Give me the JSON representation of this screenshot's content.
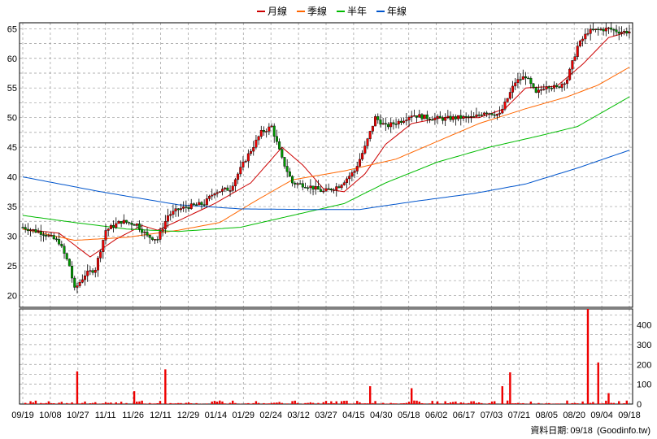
{
  "footer": {
    "label": "資料日期:",
    "date": "09/18",
    "source": "(Goodinfo.tw)"
  },
  "chart_data": {
    "type": "candlestick",
    "legend": [
      {
        "name": "月線",
        "color": "#cc0000"
      },
      {
        "name": "季線",
        "color": "#ff6600"
      },
      {
        "name": "半年",
        "color": "#00bb00"
      },
      {
        "name": "年線",
        "color": "#0055cc"
      }
    ],
    "x_tick_labels": [
      "09/19",
      "10/08",
      "10/27",
      "11/11",
      "11/26",
      "12/11",
      "12/29",
      "01/14",
      "01/29",
      "02/24",
      "03/12",
      "03/27",
      "04/15",
      "04/30",
      "05/18",
      "06/02",
      "06/17",
      "07/03",
      "07/21",
      "08/05",
      "08/20",
      "09/04",
      "09/18"
    ],
    "price_axis": {
      "ylim": [
        18,
        66
      ],
      "ticks": [
        20,
        25,
        30,
        35,
        40,
        45,
        50,
        55,
        60,
        65
      ]
    },
    "volume_axis": {
      "ylim": [
        0,
        480
      ],
      "ticks": [
        0,
        100,
        200,
        300,
        400
      ]
    },
    "close_series": [
      {
        "i": 0,
        "v": 31.5
      },
      {
        "i": 8,
        "v": 30.5
      },
      {
        "i": 14,
        "v": 29
      },
      {
        "i": 18,
        "v": 25
      },
      {
        "i": 20,
        "v": 21
      },
      {
        "i": 24,
        "v": 23.5
      },
      {
        "i": 28,
        "v": 24.5
      },
      {
        "i": 32,
        "v": 31
      },
      {
        "i": 38,
        "v": 32.5
      },
      {
        "i": 44,
        "v": 32
      },
      {
        "i": 48,
        "v": 30
      },
      {
        "i": 52,
        "v": 29.5
      },
      {
        "i": 56,
        "v": 33.5
      },
      {
        "i": 60,
        "v": 34.5
      },
      {
        "i": 64,
        "v": 35
      },
      {
        "i": 70,
        "v": 35.5
      },
      {
        "i": 74,
        "v": 37.5
      },
      {
        "i": 80,
        "v": 38
      },
      {
        "i": 86,
        "v": 43
      },
      {
        "i": 92,
        "v": 47.5
      },
      {
        "i": 96,
        "v": 48.5
      },
      {
        "i": 100,
        "v": 43
      },
      {
        "i": 104,
        "v": 39
      },
      {
        "i": 110,
        "v": 38.5
      },
      {
        "i": 116,
        "v": 37.5
      },
      {
        "i": 122,
        "v": 38.5
      },
      {
        "i": 128,
        "v": 41
      },
      {
        "i": 132,
        "v": 45
      },
      {
        "i": 136,
        "v": 50
      },
      {
        "i": 140,
        "v": 48.5
      },
      {
        "i": 146,
        "v": 49.5
      },
      {
        "i": 150,
        "v": 50.5
      },
      {
        "i": 156,
        "v": 50
      },
      {
        "i": 162,
        "v": 49.8
      },
      {
        "i": 168,
        "v": 50
      },
      {
        "i": 174,
        "v": 50
      },
      {
        "i": 178,
        "v": 51
      },
      {
        "i": 184,
        "v": 50.5
      },
      {
        "i": 190,
        "v": 56
      },
      {
        "i": 194,
        "v": 57
      },
      {
        "i": 198,
        "v": 54
      },
      {
        "i": 202,
        "v": 55.5
      },
      {
        "i": 206,
        "v": 55
      },
      {
        "i": 210,
        "v": 56.5
      },
      {
        "i": 214,
        "v": 62
      },
      {
        "i": 218,
        "v": 64.5
      },
      {
        "i": 222,
        "v": 64.8
      },
      {
        "i": 226,
        "v": 65
      },
      {
        "i": 230,
        "v": 64.5
      },
      {
        "i": 234,
        "v": 64.5
      }
    ],
    "ma_series": {
      "月線": [
        {
          "i": 0,
          "v": 31.2
        },
        {
          "i": 14,
          "v": 30.5
        },
        {
          "i": 26,
          "v": 26.5
        },
        {
          "i": 36,
          "v": 29.5
        },
        {
          "i": 46,
          "v": 31.8
        },
        {
          "i": 52,
          "v": 31
        },
        {
          "i": 62,
          "v": 33
        },
        {
          "i": 74,
          "v": 35.5
        },
        {
          "i": 88,
          "v": 39
        },
        {
          "i": 100,
          "v": 45
        },
        {
          "i": 108,
          "v": 42
        },
        {
          "i": 116,
          "v": 38
        },
        {
          "i": 124,
          "v": 37.5
        },
        {
          "i": 132,
          "v": 40.5
        },
        {
          "i": 140,
          "v": 45.5
        },
        {
          "i": 150,
          "v": 49
        },
        {
          "i": 162,
          "v": 50
        },
        {
          "i": 176,
          "v": 50
        },
        {
          "i": 186,
          "v": 51.5
        },
        {
          "i": 194,
          "v": 55
        },
        {
          "i": 206,
          "v": 55.3
        },
        {
          "i": 216,
          "v": 59
        },
        {
          "i": 226,
          "v": 63.5
        },
        {
          "i": 234,
          "v": 64.5
        }
      ],
      "季線": [
        {
          "i": 0,
          "v": 31.2
        },
        {
          "i": 20,
          "v": 29.3
        },
        {
          "i": 40,
          "v": 29.8
        },
        {
          "i": 60,
          "v": 31
        },
        {
          "i": 76,
          "v": 32.3
        },
        {
          "i": 90,
          "v": 36
        },
        {
          "i": 104,
          "v": 39.5
        },
        {
          "i": 124,
          "v": 41
        },
        {
          "i": 144,
          "v": 43
        },
        {
          "i": 160,
          "v": 46
        },
        {
          "i": 176,
          "v": 49
        },
        {
          "i": 194,
          "v": 51.5
        },
        {
          "i": 210,
          "v": 53.5
        },
        {
          "i": 222,
          "v": 55.5
        },
        {
          "i": 234,
          "v": 58.5
        }
      ],
      "半年": [
        {
          "i": 0,
          "v": 33.5
        },
        {
          "i": 20,
          "v": 32.3
        },
        {
          "i": 40,
          "v": 31.2
        },
        {
          "i": 60,
          "v": 30.8
        },
        {
          "i": 84,
          "v": 31.5
        },
        {
          "i": 104,
          "v": 33.5
        },
        {
          "i": 124,
          "v": 35.5
        },
        {
          "i": 140,
          "v": 39
        },
        {
          "i": 160,
          "v": 42.5
        },
        {
          "i": 180,
          "v": 45
        },
        {
          "i": 200,
          "v": 47
        },
        {
          "i": 214,
          "v": 48.5
        },
        {
          "i": 226,
          "v": 51.5
        },
        {
          "i": 234,
          "v": 53.5
        }
      ],
      "年線": [
        {
          "i": 0,
          "v": 40
        },
        {
          "i": 30,
          "v": 37.5
        },
        {
          "i": 60,
          "v": 35.3
        },
        {
          "i": 84,
          "v": 34.6
        },
        {
          "i": 110,
          "v": 34.5
        },
        {
          "i": 130,
          "v": 34.5
        },
        {
          "i": 150,
          "v": 35.8
        },
        {
          "i": 174,
          "v": 37.2
        },
        {
          "i": 194,
          "v": 38.8
        },
        {
          "i": 214,
          "v": 41.5
        },
        {
          "i": 234,
          "v": 44.5
        }
      ]
    },
    "volume_spikes": [
      {
        "i": 21,
        "v": 165
      },
      {
        "i": 55,
        "v": 175
      },
      {
        "i": 43,
        "v": 65
      },
      {
        "i": 134,
        "v": 90
      },
      {
        "i": 150,
        "v": 80
      },
      {
        "i": 185,
        "v": 90
      },
      {
        "i": 188,
        "v": 160
      },
      {
        "i": 218,
        "v": 480
      },
      {
        "i": 222,
        "v": 210
      },
      {
        "i": 226,
        "v": 55
      }
    ]
  }
}
